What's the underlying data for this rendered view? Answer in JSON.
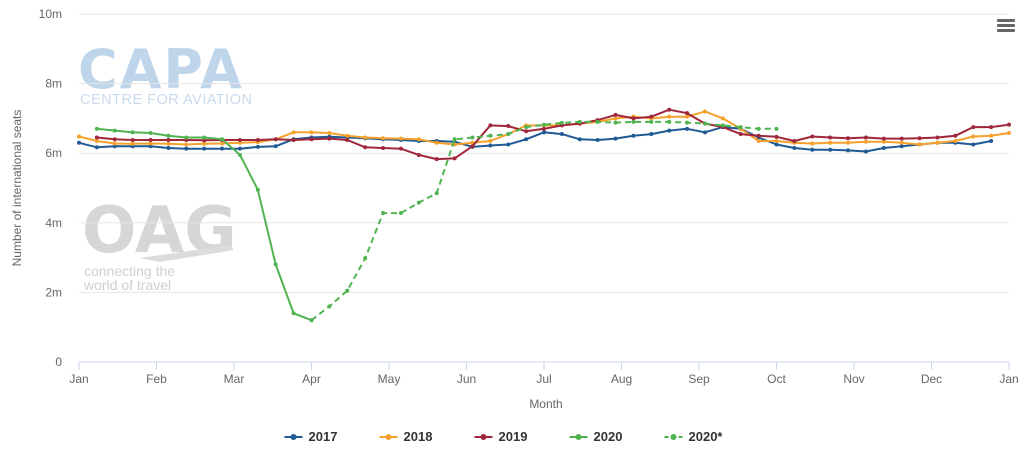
{
  "watermark": {
    "capa_logo": "CAPA",
    "capa_sub": "CENTRE FOR AVIATION",
    "oag_logo": "OAG",
    "oag_tag_line1": "connecting the",
    "oag_tag_line2": "world of travel"
  },
  "menu_icon": "hamburger-menu-icon",
  "chart_data": {
    "type": "line",
    "title": "",
    "xlabel": "Month",
    "ylabel": "Number of international seats",
    "x_tick_labels": [
      "Jan",
      "Feb",
      "Mar",
      "Apr",
      "May",
      "Jun",
      "Jul",
      "Aug",
      "Sep",
      "Oct",
      "Nov",
      "Dec",
      "Jan"
    ],
    "y_tick_labels": [
      "0",
      "2m",
      "4m",
      "6m",
      "8m",
      "10m"
    ],
    "ylim": [
      0,
      10000000
    ],
    "xlim_weeks": [
      0,
      52
    ],
    "grid": true,
    "legend_position": "bottom-center",
    "series": [
      {
        "name": "2017",
        "color": "#1f5a94",
        "dash": "solid",
        "x_week": [
          0,
          1,
          2,
          3,
          4,
          5,
          6,
          7,
          8,
          9,
          10,
          11,
          12,
          13,
          14,
          15,
          16,
          17,
          18,
          19,
          20,
          21,
          22,
          23,
          24,
          25,
          26,
          27,
          28,
          29,
          30,
          31,
          32,
          33,
          34,
          35,
          36,
          37,
          38,
          39,
          40,
          41,
          42,
          43,
          44,
          45,
          46,
          47,
          48,
          49,
          50,
          51
        ],
        "values": [
          6300000,
          6170000,
          6200000,
          6200000,
          6200000,
          6150000,
          6130000,
          6130000,
          6130000,
          6130000,
          6180000,
          6200000,
          6400000,
          6450000,
          6470000,
          6450000,
          6430000,
          6400000,
          6380000,
          6350000,
          6350000,
          6330000,
          6180000,
          6220000,
          6250000,
          6400000,
          6600000,
          6550000,
          6400000,
          6380000,
          6420000,
          6500000,
          6550000,
          6650000,
          6700000,
          6600000,
          6750000,
          6700000,
          6450000,
          6250000,
          6150000,
          6100000,
          6100000,
          6080000,
          6050000,
          6150000,
          6200000,
          6250000,
          6300000,
          6300000,
          6250000,
          6350000
        ]
      },
      {
        "name": "2018",
        "color": "#f5a12d",
        "dash": "solid",
        "x_week": [
          0,
          1,
          2,
          3,
          4,
          5,
          6,
          7,
          8,
          9,
          10,
          11,
          12,
          13,
          14,
          15,
          16,
          17,
          18,
          19,
          20,
          21,
          22,
          23,
          24,
          25,
          26,
          27,
          28,
          29,
          30,
          31,
          32,
          33,
          34,
          35,
          36,
          37,
          38,
          39,
          40,
          41,
          42,
          43,
          44,
          45,
          46,
          47,
          48,
          49,
          50,
          51,
          52
        ],
        "values": [
          6480000,
          6350000,
          6280000,
          6270000,
          6280000,
          6270000,
          6250000,
          6270000,
          6280000,
          6300000,
          6320000,
          6400000,
          6600000,
          6600000,
          6580000,
          6500000,
          6450000,
          6430000,
          6420000,
          6400000,
          6300000,
          6250000,
          6300000,
          6350000,
          6550000,
          6800000,
          6800000,
          6800000,
          6850000,
          6900000,
          7000000,
          7050000,
          7000000,
          7050000,
          7050000,
          7200000,
          7000000,
          6700000,
          6350000,
          6350000,
          6300000,
          6280000,
          6300000,
          6300000,
          6330000,
          6330000,
          6300000,
          6250000,
          6300000,
          6350000,
          6480000,
          6500000,
          6580000
        ]
      },
      {
        "name": "2019",
        "color": "#a0263b",
        "dash": "solid",
        "x_week": [
          1,
          2,
          3,
          4,
          5,
          6,
          7,
          8,
          9,
          10,
          11,
          12,
          13,
          14,
          15,
          16,
          17,
          18,
          19,
          20,
          21,
          22,
          23,
          24,
          25,
          26,
          27,
          28,
          29,
          30,
          31,
          32,
          33,
          34,
          35,
          36,
          37,
          38,
          39,
          40,
          41,
          42,
          43,
          44,
          45,
          46,
          47,
          48,
          49,
          50,
          51,
          52
        ],
        "values": [
          6450000,
          6400000,
          6380000,
          6380000,
          6380000,
          6380000,
          6370000,
          6380000,
          6380000,
          6380000,
          6400000,
          6380000,
          6400000,
          6420000,
          6380000,
          6170000,
          6150000,
          6130000,
          5950000,
          5830000,
          5850000,
          6200000,
          6800000,
          6780000,
          6630000,
          6700000,
          6800000,
          6850000,
          6950000,
          7100000,
          7000000,
          7050000,
          7250000,
          7150000,
          6850000,
          6750000,
          6550000,
          6500000,
          6470000,
          6350000,
          6480000,
          6450000,
          6430000,
          6450000,
          6420000,
          6420000,
          6430000,
          6450000,
          6500000,
          6750000,
          6750000,
          6820000
        ]
      },
      {
        "name": "2020",
        "color": "#4fb34f",
        "dash": "solid",
        "x_week": [
          0,
          1,
          2,
          3,
          4,
          5,
          6,
          7,
          8,
          9,
          10,
          11,
          12,
          13,
          14
        ],
        "values": [
          null,
          6700000,
          6650000,
          6600000,
          6580000,
          6500000,
          6450000,
          6450000,
          6400000,
          5950000,
          4950000,
          2800000,
          1400000,
          1200000,
          null
        ]
      },
      {
        "name": "2020*",
        "color": "#4fb34f",
        "dash": "dashed",
        "x_week": [
          13,
          14,
          15,
          16,
          17,
          18,
          19,
          20,
          21,
          22,
          23,
          24,
          25,
          26,
          27,
          28,
          29,
          30,
          31,
          32,
          33,
          34,
          35,
          36,
          37,
          38,
          39
        ],
        "values": [
          1200000,
          1600000,
          2050000,
          2980000,
          4280000,
          4280000,
          4580000,
          4850000,
          6400000,
          6450000,
          6500000,
          6550000,
          6750000,
          6820000,
          6870000,
          6900000,
          6900000,
          6880000,
          6900000,
          6900000,
          6900000,
          6880000,
          6850000,
          6800000,
          6750000,
          6700000,
          6700000
        ]
      }
    ]
  }
}
